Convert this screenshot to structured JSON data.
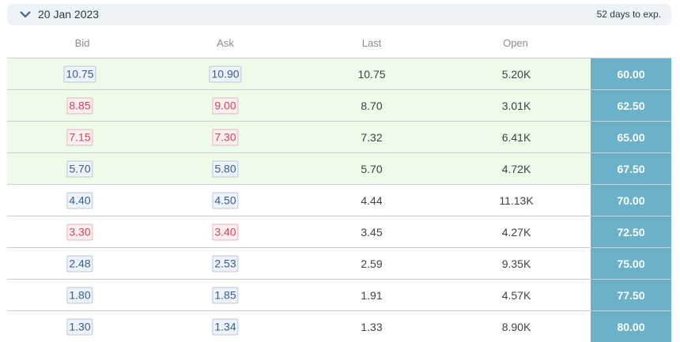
{
  "header": {
    "date": "20 Jan 2023",
    "days_to_exp": "52 days to exp."
  },
  "columns": [
    "Bid",
    "Ask",
    "Last",
    "Open"
  ],
  "colors": {
    "itm_row_bg": "#eefbe9",
    "strike_bg": "#6ab1c9",
    "up_quote": "#3a5d8f",
    "down_quote": "#d04a57"
  },
  "rows": [
    {
      "bid": "10.75",
      "ask": "10.90",
      "last": "10.75",
      "open": "5.20K",
      "strike": "60.00",
      "dir": "up",
      "itm": true
    },
    {
      "bid": "8.85",
      "ask": "9.00",
      "last": "8.70",
      "open": "3.01K",
      "strike": "62.50",
      "dir": "down",
      "itm": true
    },
    {
      "bid": "7.15",
      "ask": "7.30",
      "last": "7.32",
      "open": "6.41K",
      "strike": "65.00",
      "dir": "down",
      "itm": true
    },
    {
      "bid": "5.70",
      "ask": "5.80",
      "last": "5.70",
      "open": "4.72K",
      "strike": "67.50",
      "dir": "up",
      "itm": true
    },
    {
      "bid": "4.40",
      "ask": "4.50",
      "last": "4.44",
      "open": "11.13K",
      "strike": "70.00",
      "dir": "up",
      "itm": false
    },
    {
      "bid": "3.30",
      "ask": "3.40",
      "last": "3.45",
      "open": "4.27K",
      "strike": "72.50",
      "dir": "down",
      "itm": false
    },
    {
      "bid": "2.48",
      "ask": "2.53",
      "last": "2.59",
      "open": "9.35K",
      "strike": "75.00",
      "dir": "up",
      "itm": false
    },
    {
      "bid": "1.80",
      "ask": "1.85",
      "last": "1.91",
      "open": "4.57K",
      "strike": "77.50",
      "dir": "up",
      "itm": false
    },
    {
      "bid": "1.30",
      "ask": "1.34",
      "last": "1.33",
      "open": "8.90K",
      "strike": "80.00",
      "dir": "up",
      "itm": false
    }
  ]
}
